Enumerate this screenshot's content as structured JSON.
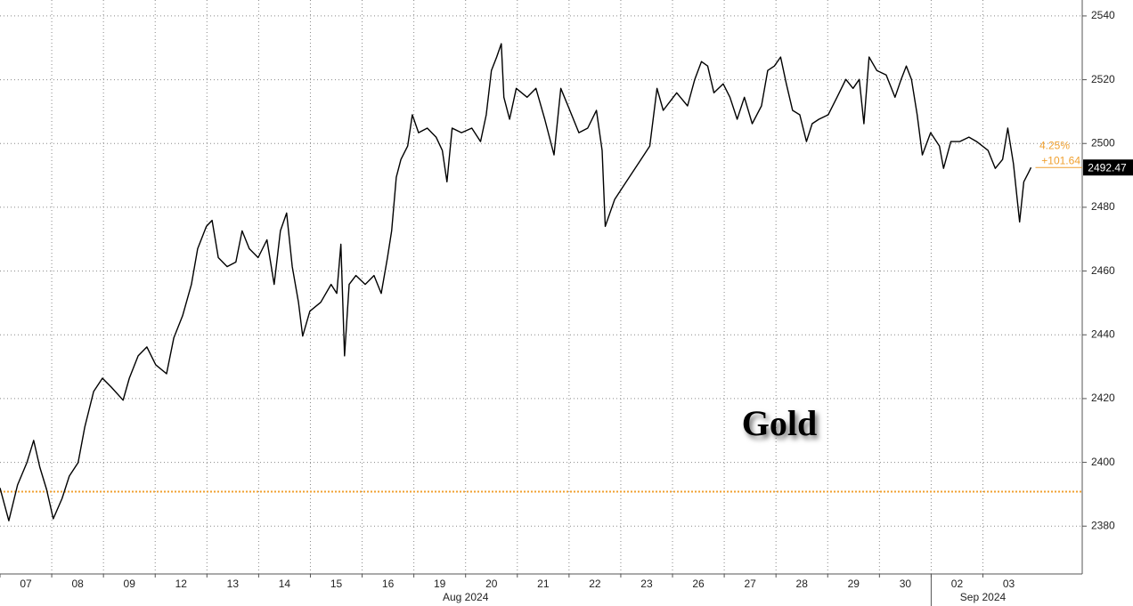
{
  "chart_data": {
    "type": "line",
    "title": "Gold",
    "categories": [
      "07",
      "08",
      "09",
      "12",
      "13",
      "14",
      "15",
      "16",
      "19",
      "20",
      "21",
      "22",
      "23",
      "26",
      "27",
      "28",
      "29",
      "30",
      "02",
      "03"
    ],
    "month_labels": [
      "Aug 2024",
      "Sep 2024"
    ],
    "xlim": [
      0,
      20.92
    ],
    "ylim": [
      2365,
      2545
    ],
    "yticks": [
      2380,
      2400,
      2420,
      2440,
      2460,
      2480,
      2500,
      2520,
      2540
    ],
    "grid": true,
    "series": [
      {
        "color": "#000000",
        "x": [
          0,
          0.17,
          0.34,
          0.52,
          0.65,
          0.77,
          0.9,
          1.03,
          1.2,
          1.34,
          1.51,
          1.64,
          1.81,
          1.98,
          2.15,
          2.38,
          2.5,
          2.67,
          2.84,
          3.01,
          3.22,
          3.36,
          3.53,
          3.7,
          3.82,
          3.99,
          4.1,
          4.22,
          4.39,
          4.56,
          4.68,
          4.82,
          4.99,
          5.16,
          5.3,
          5.42,
          5.54,
          5.65,
          5.77,
          5.85,
          5.99,
          6.2,
          6.4,
          6.51,
          6.59,
          6.66,
          6.75,
          6.88,
          7.06,
          7.23,
          7.37,
          7.49,
          7.57,
          7.66,
          7.75,
          7.88,
          7.97,
          8.09,
          8.26,
          8.43,
          8.55,
          8.64,
          8.74,
          8.92,
          9.12,
          9.29,
          9.4,
          9.5,
          9.6,
          9.69,
          9.74,
          9.85,
          9.98,
          10.19,
          10.36,
          10.53,
          10.71,
          10.84,
          10.98,
          11.19,
          11.36,
          11.53,
          11.64,
          11.7,
          11.88,
          12.05,
          12.22,
          12.39,
          12.56,
          12.7,
          12.82,
          13.08,
          13.29,
          13.43,
          13.56,
          13.68,
          13.8,
          13.98,
          14.11,
          14.25,
          14.39,
          14.54,
          14.72,
          14.84,
          14.97,
          15.09,
          15.2,
          15.32,
          15.46,
          15.59,
          15.7,
          15.83,
          16.01,
          16.18,
          16.35,
          16.49,
          16.61,
          16.7,
          16.8,
          16.95,
          17.13,
          17.3,
          17.42,
          17.52,
          17.62,
          17.73,
          17.83,
          17.99,
          18.16,
          18.24,
          18.38,
          18.55,
          18.73,
          18.88,
          19.1,
          19.24,
          19.38,
          19.48,
          19.59,
          19.71,
          19.79,
          19.88,
          19.93
        ],
        "values": [
          2392.0,
          2381.7,
          2392.9,
          2399.9,
          2406.9,
          2398.5,
          2391.5,
          2382.3,
          2388.7,
          2395.7,
          2399.9,
          2411.1,
          2422.2,
          2426.4,
          2423.6,
          2419.5,
          2426.4,
          2433.4,
          2436.2,
          2430.6,
          2427.8,
          2439.0,
          2446.0,
          2455.8,
          2467.0,
          2474.0,
          2475.9,
          2464.2,
          2461.4,
          2462.8,
          2472.6,
          2467.0,
          2464.2,
          2469.8,
          2455.8,
          2472.6,
          2478.2,
          2461.4,
          2450.2,
          2439.6,
          2447.4,
          2450.2,
          2455.8,
          2453.0,
          2468.4,
          2433.4,
          2455.8,
          2458.6,
          2455.8,
          2458.6,
          2453.0,
          2464.2,
          2472.6,
          2489.4,
          2495.0,
          2499.2,
          2509.0,
          2503.4,
          2504.8,
          2502.0,
          2497.8,
          2488.0,
          2504.8,
          2503.4,
          2504.8,
          2500.6,
          2509.0,
          2522.9,
          2527.1,
          2531.3,
          2514.5,
          2507.6,
          2517.3,
          2514.5,
          2517.3,
          2507.6,
          2496.4,
          2517.3,
          2511.8,
          2503.4,
          2504.8,
          2510.4,
          2497.8,
          2474.0,
          2482.4,
          2486.6,
          2490.8,
          2495.0,
          2499.2,
          2517.3,
          2510.4,
          2515.9,
          2511.8,
          2520.1,
          2525.7,
          2524.3,
          2515.9,
          2518.7,
          2514.5,
          2507.6,
          2514.5,
          2506.2,
          2511.8,
          2522.9,
          2524.3,
          2527.1,
          2518.7,
          2510.4,
          2509.0,
          2500.6,
          2506.2,
          2507.6,
          2509.0,
          2514.5,
          2520.1,
          2517.3,
          2520.1,
          2506.2,
          2527.1,
          2522.9,
          2521.5,
          2514.5,
          2520.1,
          2524.3,
          2520.1,
          2509.0,
          2496.4,
          2503.4,
          2499.2,
          2492.2,
          2500.6,
          2500.6,
          2502.0,
          2500.6,
          2497.8,
          2492.2,
          2495.0,
          2504.8,
          2493.6,
          2475.4,
          2488.0,
          2490.8,
          2492.47
        ]
      }
    ],
    "reference_line": {
      "value": 2390.83,
      "color": "#f0a030"
    },
    "annotations": [
      "4.25%",
      "+101.64"
    ]
  }
}
